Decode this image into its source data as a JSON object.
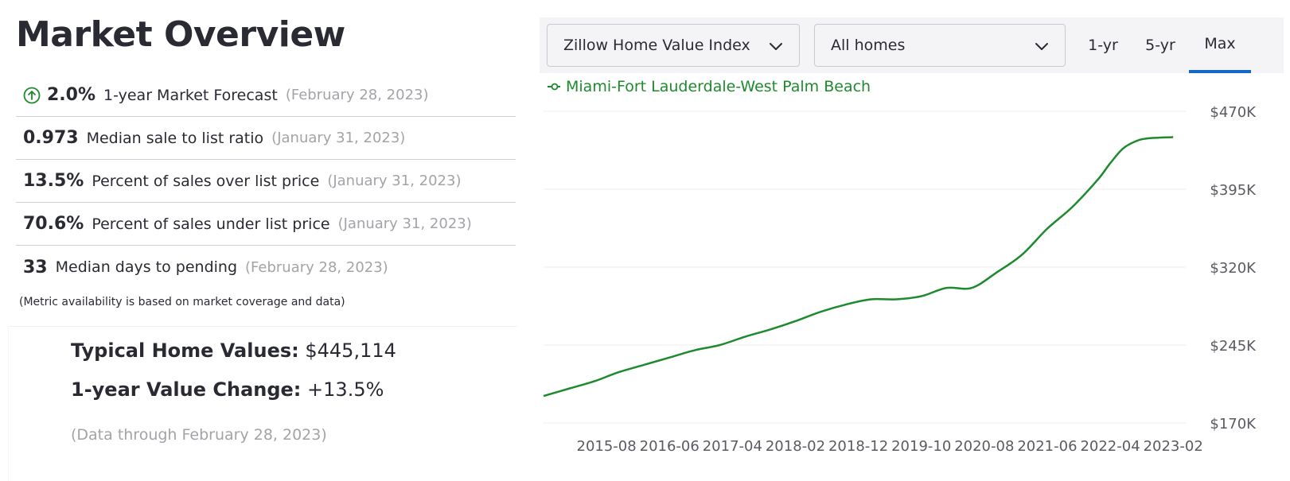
{
  "page": {
    "title": "Market Overview"
  },
  "metrics": [
    {
      "value": "2.0%",
      "label": "1-year Market Forecast",
      "date": "(February 28, 2023)",
      "icon": "arrow-up-circle-icon"
    },
    {
      "value": "0.973",
      "label": "Median sale to list ratio",
      "date": "(January 31, 2023)"
    },
    {
      "value": "13.5%",
      "label": "Percent of sales over list price",
      "date": "(January 31, 2023)"
    },
    {
      "value": "70.6%",
      "label": "Percent of sales under list price",
      "date": "(January 31, 2023)"
    },
    {
      "value": "33",
      "label": "Median days to pending",
      "date": "(February 28, 2023)"
    }
  ],
  "note": "(Metric availability is based on market coverage and data)",
  "summary": {
    "home_values_label": "Typical Home Values:",
    "home_values_value": "$445,114",
    "value_change_label": "1-year Value Change:",
    "value_change_value": "+13.5%",
    "data_through": "(Data through February 28, 2023)"
  },
  "toolbar": {
    "index_select": "Zillow Home Value Index",
    "home_type_select": "All homes",
    "ranges": [
      "1-yr",
      "5-yr",
      "Max"
    ],
    "active_range": "Max"
  },
  "colors": {
    "series": "#1e8a2e",
    "accent": "#1668c7"
  },
  "chart_data": {
    "type": "line",
    "series": [
      {
        "name": "Miami-Fort Lauderdale-West Palm Beach",
        "x": [
          "2014-10",
          "2015-02",
          "2015-06",
          "2015-10",
          "2016-02",
          "2016-06",
          "2016-10",
          "2017-02",
          "2017-06",
          "2017-10",
          "2018-02",
          "2018-06",
          "2018-10",
          "2019-02",
          "2019-06",
          "2019-10",
          "2020-02",
          "2020-06",
          "2020-10",
          "2021-02",
          "2021-06",
          "2021-10",
          "2022-02",
          "2022-04",
          "2022-06",
          "2022-08",
          "2022-10",
          "2023-02"
        ],
        "values": [
          196000,
          203000,
          210000,
          219000,
          226000,
          233000,
          240000,
          245000,
          253000,
          260000,
          268000,
          277000,
          284000,
          289000,
          289000,
          292000,
          300000,
          300000,
          315000,
          332000,
          357000,
          378000,
          404000,
          420000,
          434000,
          441000,
          444000,
          445114
        ]
      }
    ],
    "x_ticks": [
      "2015-08",
      "2016-06",
      "2017-04",
      "2018-02",
      "2018-12",
      "2019-10",
      "2020-08",
      "2021-06",
      "2022-04",
      "2023-02"
    ],
    "y_ticks": [
      "$170K",
      "$245K",
      "$320K",
      "$395K",
      "$470K"
    ],
    "y_tick_values": [
      170000,
      245000,
      320000,
      395000,
      470000
    ],
    "ylim": [
      170000,
      470000
    ],
    "xlim": [
      "2014-10",
      "2023-04"
    ],
    "grid": true,
    "legend_position": "top-left"
  }
}
